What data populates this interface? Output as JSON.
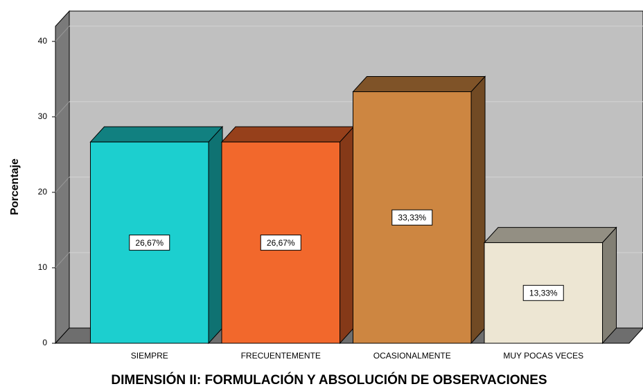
{
  "chart_data": {
    "type": "bar3d",
    "title": "DIMENSIÓN II: FORMULACIÓN Y ABSOLUCIÓN DE OBSERVACIONES",
    "y_label": "Porcentaje",
    "categories": [
      "SIEMPRE",
      "FRECUENTEMENTE",
      "OCASIONALMENTE",
      "MUY POCAS VECES"
    ],
    "values": [
      26.67,
      26.67,
      33.33,
      13.33
    ],
    "value_labels": [
      "26,67%",
      "26,67%",
      "33,33%",
      "13,33%"
    ],
    "colors": [
      "#1ccfcf",
      "#f2682c",
      "#cd8641",
      "#ede6d3"
    ],
    "ylim": [
      0,
      42
    ],
    "yticks": [
      0,
      10,
      20,
      30,
      40
    ],
    "grid": true
  }
}
